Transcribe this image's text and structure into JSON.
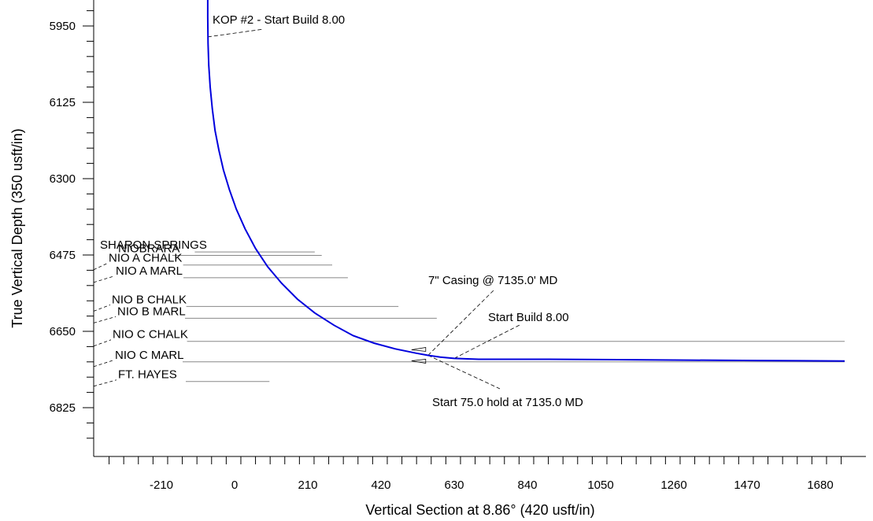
{
  "chart_data": {
    "type": "line",
    "xlabel": "Vertical Section at 8.86° (420 usft/in)",
    "ylabel": "True Vertical Depth (350 usft/in)",
    "xlim": [
      -360,
      1750
    ],
    "ylim": [
      6895,
      5880
    ],
    "x_ticks": [
      -210,
      0,
      210,
      420,
      630,
      840,
      1050,
      1260,
      1470,
      1680
    ],
    "y_ticks": [
      5950,
      6125,
      6300,
      6475,
      6650,
      6825
    ],
    "line_color": "#0000dd",
    "series": [
      {
        "x": [
          -77,
          -77,
          -76,
          -74,
          -70,
          -64,
          -56,
          -45,
          -32,
          -15,
          5,
          30,
          60,
          95,
          135,
          180,
          230,
          285,
          340,
          400,
          460,
          520,
          555,
          590,
          630,
          700,
          900,
          1100,
          1300,
          1500,
          1750
        ],
        "y": [
          5880,
          5930,
          5990,
          6040,
          6090,
          6140,
          6190,
          6235,
          6280,
          6325,
          6370,
          6415,
          6460,
          6502,
          6540,
          6576,
          6608,
          6636,
          6660,
          6677,
          6690,
          6700,
          6705,
          6709,
          6712,
          6714,
          6714,
          6715,
          6716,
          6717,
          6718
        ]
      }
    ],
    "annotations": [
      {
        "text": "KOP #2 - Start Build 8.00",
        "x": -77,
        "y": 5975
      },
      {
        "text": "7\" Casing @ 7135.0' MD",
        "x": 555,
        "y": 6705
      },
      {
        "text": "Start Build 8.00",
        "x": 630,
        "y": 6712
      },
      {
        "text": "Start 75.0 hold at 7135.0 MD",
        "x": 555,
        "y": 6705
      }
    ],
    "formations": [
      {
        "name": "SHARON SPRINGS",
        "tvd": 6468,
        "line_end": 230
      },
      {
        "name": "NIOBRARA",
        "tvd": 6476,
        "line_end": 250
      },
      {
        "name": "NIO A CHALK",
        "tvd": 6498,
        "line_end": 280
      },
      {
        "name": "NIO A MARL",
        "tvd": 6527,
        "line_end": 325
      },
      {
        "name": "NIO B CHALK",
        "tvd": 6593,
        "line_end": 470
      },
      {
        "name": "NIO B MARL",
        "tvd": 6620,
        "line_end": 580
      },
      {
        "name": "NIO C CHALK",
        "tvd": 6673,
        "line_end": 1750
      },
      {
        "name": "NIO C MARL",
        "tvd": 6720,
        "line_end": 1750
      },
      {
        "name": "FT.  HAYES",
        "tvd": 6765,
        "line_end": 100
      }
    ]
  }
}
